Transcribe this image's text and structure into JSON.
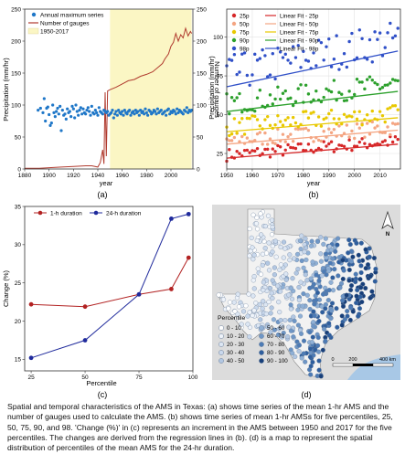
{
  "panel_labels": [
    "(a)",
    "(b)",
    "(c)",
    "(d)"
  ],
  "caption": "Spatial and temporal characteristics of the AMS in Texas: (a) shows time series of the mean 1-hr AMS and the number of gauges used to calculate the AMS. (b) shows time series of mean 1-hr AMSs for five percentiles, 25, 50, 75, 90, and 98. 'Change (%)' in (c) represents an increment in the AMS between 1950 and 2017 for the five percentiles. The changes are derived from the regression lines in (b). (d) is a map to represent the spatial distribution of percentiles of the mean AMS for the 24-hr duration.",
  "chart_data": [
    {
      "id": "a",
      "type": "scatter",
      "xlabel": "year",
      "ylabel": "Precipitation (mm/hr)",
      "y2label": "Number of gauges",
      "xlim": [
        1880,
        2018
      ],
      "ylim": [
        0,
        250
      ],
      "y2lim": [
        0,
        250
      ],
      "xticks": [
        1880,
        1900,
        1920,
        1940,
        1960,
        1980,
        2000
      ],
      "yticks": [
        0,
        50,
        100,
        150,
        200,
        250
      ],
      "y2ticks": [
        0,
        50,
        100,
        150,
        200,
        250
      ],
      "shaded_range": [
        1950,
        2017
      ],
      "shade_color": "#fbf6c4",
      "legend": [
        "Annual maximum series",
        "Number of gauges",
        "1950-2017"
      ],
      "series": [
        {
          "name": "Annual maximum series",
          "kind": "points",
          "color": "#1f77c8",
          "x": [
            1891,
            1893,
            1895,
            1896,
            1897,
            1898,
            1899,
            1900,
            1901,
            1902,
            1903,
            1904,
            1905,
            1906,
            1907,
            1908,
            1909,
            1910,
            1911,
            1912,
            1913,
            1914,
            1915,
            1916,
            1917,
            1918,
            1919,
            1920,
            1921,
            1922,
            1923,
            1924,
            1925,
            1926,
            1927,
            1928,
            1929,
            1930,
            1931,
            1932,
            1933,
            1934,
            1935,
            1936,
            1937,
            1938,
            1939,
            1940,
            1941,
            1942,
            1943,
            1944,
            1945,
            1946,
            1947,
            1948,
            1949,
            1950,
            1951,
            1952,
            1953,
            1954,
            1955,
            1956,
            1957,
            1958,
            1959,
            1960,
            1961,
            1962,
            1963,
            1964,
            1965,
            1966,
            1967,
            1968,
            1969,
            1970,
            1971,
            1972,
            1973,
            1974,
            1975,
            1976,
            1977,
            1978,
            1979,
            1980,
            1981,
            1982,
            1983,
            1984,
            1985,
            1986,
            1987,
            1988,
            1989,
            1990,
            1991,
            1992,
            1993,
            1994,
            1995,
            1996,
            1997,
            1998,
            1999,
            2000,
            2001,
            2002,
            2003,
            2004,
            2005,
            2006,
            2007,
            2008,
            2009,
            2010,
            2011,
            2012,
            2013,
            2014,
            2015,
            2016,
            2017
          ],
          "y": [
            92,
            95,
            88,
            110,
            75,
            95,
            97,
            85,
            68,
            72,
            100,
            88,
            82,
            90,
            95,
            86,
            98,
            60,
            92,
            84,
            86,
            78,
            94,
            88,
            90,
            82,
            98,
            94,
            80,
            100,
            90,
            84,
            92,
            96,
            86,
            94,
            88,
            86,
            92,
            96,
            90,
            84,
            98,
            88,
            86,
            92,
            88,
            84,
            96,
            90,
            88,
            86,
            92,
            90,
            88,
            90,
            84,
            86,
            88,
            92,
            80,
            86,
            90,
            84,
            92,
            88,
            86,
            90,
            84,
            92,
            88,
            86,
            90,
            92,
            84,
            88,
            90,
            86,
            92,
            88,
            90,
            84,
            92,
            88,
            90,
            86,
            94,
            88,
            84,
            92,
            90,
            86,
            88,
            92,
            90,
            86,
            94,
            88,
            90,
            92,
            86,
            88,
            90,
            84,
            92,
            94,
            86,
            90,
            88,
            92,
            90,
            86,
            94,
            88,
            92,
            90,
            88,
            86,
            92,
            90,
            96,
            88,
            92,
            90,
            92
          ]
        },
        {
          "name": "Number of gauges",
          "kind": "line",
          "color": "#b03a2e",
          "x": [
            1880,
            1892,
            1900,
            1910,
            1920,
            1930,
            1935,
            1940,
            1942,
            1944,
            1945,
            1946,
            1947,
            1948,
            1950,
            1955,
            1960,
            1965,
            1970,
            1975,
            1980,
            1985,
            1990,
            1993,
            1995,
            1998,
            2000,
            2002,
            2004,
            2006,
            2008,
            2010,
            2012,
            2014,
            2016,
            2017
          ],
          "y": [
            1,
            1,
            2,
            3,
            4,
            5,
            5,
            3,
            10,
            30,
            8,
            120,
            20,
            122,
            124,
            128,
            133,
            138,
            140,
            145,
            148,
            152,
            160,
            165,
            172,
            180,
            192,
            198,
            212,
            200,
            210,
            205,
            220,
            208,
            215,
            212
          ]
        }
      ]
    },
    {
      "id": "b",
      "type": "scatter",
      "xlabel": "year",
      "ylabel": "Precipitation (mm/hr)",
      "xlim": [
        1950,
        2018
      ],
      "ylim": [
        15,
        118
      ],
      "xticks": [
        1950,
        1960,
        1970,
        1980,
        1990,
        2000,
        2010
      ],
      "yticks": [
        25,
        50,
        75,
        100
      ],
      "series": [
        {
          "name": "25p",
          "color": "#d62728",
          "fit": [
            22,
            31
          ],
          "base": 24,
          "amp": 4
        },
        {
          "name": "50p",
          "color": "#f4a582",
          "fit": [
            31,
            40
          ],
          "base": 33,
          "amp": 5
        },
        {
          "name": "75p",
          "color": "#e8c800",
          "fit": [
            39,
            48
          ],
          "base": 42,
          "amp": 6
        },
        {
          "name": "90p",
          "color": "#2ca02c",
          "fit": [
            52,
            65
          ],
          "base": 57,
          "amp": 7
        },
        {
          "name": "98p",
          "color": "#3050c8",
          "fit": [
            68,
            91
          ],
          "base": 76,
          "amp": 12
        }
      ],
      "legend": [
        "25p",
        "50p",
        "75p",
        "90p",
        "98p",
        "Linear Fit - 25p",
        "Linear Fit - 50p",
        "Linear Fit - 75p",
        "Linear Fit - 90p",
        "Linear Fit - 98p"
      ]
    },
    {
      "id": "c",
      "type": "line",
      "xlabel": "Percentile",
      "ylabel": "Change (%)",
      "xlim": [
        22,
        100
      ],
      "ylim": [
        13.5,
        35
      ],
      "xticks": [
        25,
        50,
        75,
        100
      ],
      "yticks": [
        15,
        20,
        25,
        30,
        35
      ],
      "series": [
        {
          "name": "1-h duration",
          "color": "#b22222",
          "x": [
            25,
            50,
            75,
            90,
            98
          ],
          "y": [
            22.2,
            21.9,
            23.5,
            24.2,
            28.3
          ]
        },
        {
          "name": "24-h duration",
          "color": "#1f2a9c",
          "x": [
            25,
            50,
            75,
            90,
            98
          ],
          "y": [
            15.2,
            17.5,
            23.5,
            33.4,
            34.0
          ]
        }
      ]
    }
  ],
  "map": {
    "legend_title": "Percentile",
    "classes": [
      "0 - 10",
      "10 - 20",
      "20 - 30",
      "30 - 40",
      "40 - 50",
      "50 - 60",
      "60 - 70",
      "70 - 80",
      "80 - 90",
      "90 - 100"
    ],
    "class_colors": [
      "#ffffff",
      "#eef3fa",
      "#dce6f3",
      "#c9d8ec",
      "#b2c7e2",
      "#8fb0d6",
      "#6e96c6",
      "#4d7bb5",
      "#2e5e9e",
      "#173f7a"
    ],
    "scale_labels": [
      "0",
      "200",
      "400 km"
    ],
    "north": "N",
    "water_color": "#a8c8e6",
    "land_color": "#dcdcdc"
  }
}
